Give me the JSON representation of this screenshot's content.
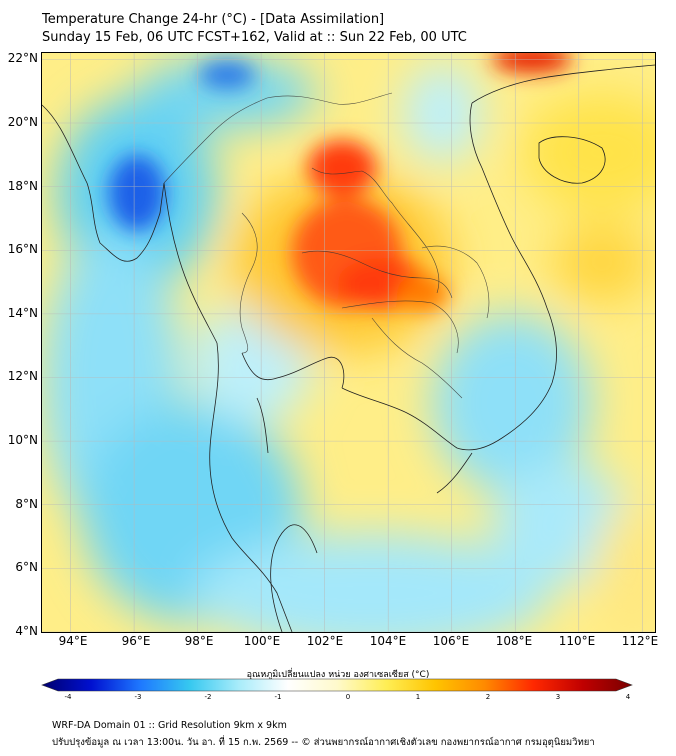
{
  "title": {
    "line1": "Temperature Change 24-hr (°C) - [Data Assimilation]",
    "line2": "Sunday 15 Feb, 06 UTC FCST+162, Valid at :: Sun 22 Feb, 00 UTC"
  },
  "map": {
    "lat_labels": [
      "22°N",
      "20°N",
      "18°N",
      "16°N",
      "14°N",
      "12°N",
      "10°N",
      "8°N",
      "6°N",
      "4°N"
    ],
    "lon_labels": [
      "94°E",
      "96°E",
      "98°E",
      "100°E",
      "102°E",
      "104°E",
      "106°E",
      "108°E",
      "110°E",
      "112°E"
    ],
    "lat_range": [
      4,
      22.2
    ],
    "lon_range": [
      93.1,
      112.4
    ],
    "field": "24-hr temperature change (°C)"
  },
  "colorbar": {
    "title": "อุณหภูมิเปลี่ยนแปลง หน่วย องศาเซลเซียส (°C)",
    "ticks": [
      "-4",
      "-3",
      "-2",
      "-1",
      "0",
      "1",
      "2",
      "3",
      "4"
    ],
    "range": [
      -4,
      4
    ],
    "colors": [
      "#00006e",
      "#0010d0",
      "#1e78ff",
      "#36c8f0",
      "#a8ecfa",
      "#ffffff",
      "#fffacc",
      "#ffee55",
      "#ffc400",
      "#ff8a00",
      "#ff2800",
      "#c00000",
      "#780000"
    ]
  },
  "footer": {
    "line1": "WRF-DA Domain 01 :: Grid Resolution 9km x 9km",
    "line2": "ปรับปรุงข้อมูล ณ เวลา 13:00น. วัน อา. ที่ 15 ก.พ. 2569 -- © ส่วนพยากรณ์อากาศเชิงตัวเลข กองพยากรณ์อากาศ กรมอุตุนิยมวิทยา"
  }
}
